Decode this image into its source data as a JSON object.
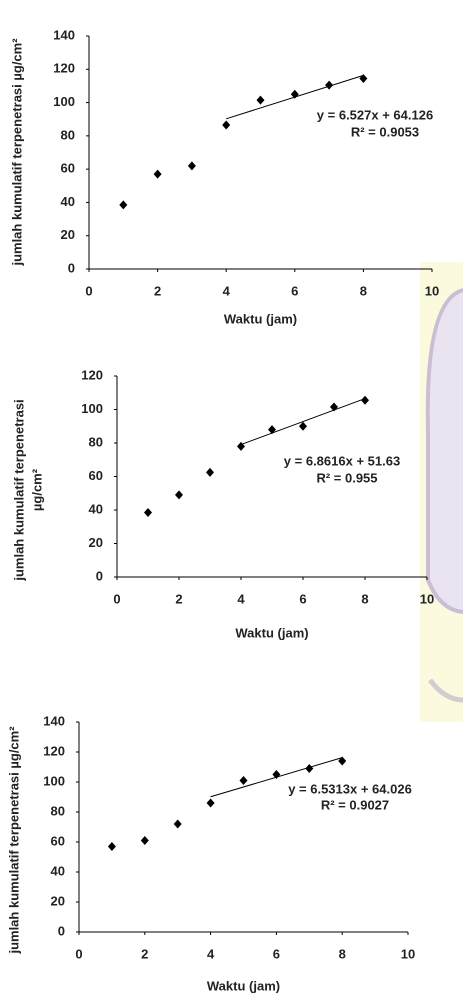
{
  "chart_data": [
    {
      "type": "scatter",
      "x": [
        1,
        2,
        3,
        4,
        5,
        6,
        7,
        8
      ],
      "values": [
        38.5,
        57,
        62,
        86.5,
        101.5,
        105,
        110.5,
        114.5
      ],
      "color": "#000000",
      "xlabel": "Waktu (jam)",
      "ylabel": [
        "jumlah kumulatif terpenetrasi µg/cm²"
      ],
      "xlim": [
        0,
        10
      ],
      "xticks": [
        0,
        2,
        4,
        6,
        8,
        10
      ],
      "ylim": [
        0,
        140
      ],
      "yticks": [
        0,
        20,
        40,
        60,
        80,
        100,
        120,
        140
      ],
      "trendline": {
        "slope": 6.527,
        "intercept": 64.126,
        "from": 4,
        "to": 8
      },
      "annotations": [
        "y = 6.527x + 64.126",
        "R² = 0.9053"
      ]
    },
    {
      "type": "scatter",
      "x": [
        1,
        2,
        3,
        4,
        5,
        6,
        7,
        8
      ],
      "values": [
        38.5,
        49,
        62.5,
        78,
        88,
        90,
        101.5,
        105.5
      ],
      "color": "#000000",
      "xlabel": "Waktu (jam)",
      "ylabel": [
        "jumlah kumulatif terpenetrasi",
        "µg/cm²"
      ],
      "xlim": [
        0,
        10
      ],
      "xticks": [
        0,
        2,
        4,
        6,
        8,
        10
      ],
      "ylim": [
        0,
        120
      ],
      "yticks": [
        0,
        20,
        40,
        60,
        80,
        100,
        120
      ],
      "trendline": {
        "slope": 6.8616,
        "intercept": 51.63,
        "from": 4,
        "to": 8
      },
      "annotations": [
        "y = 6.8616x + 51.63",
        "R² = 0.955"
      ]
    },
    {
      "type": "scatter",
      "x": [
        1,
        2,
        3,
        4,
        5,
        6,
        7,
        8
      ],
      "values": [
        57,
        61,
        72,
        86,
        101,
        105,
        109,
        114
      ],
      "color": "#000000",
      "xlabel": "Waktu (jam)",
      "ylabel": [
        "jumlah kumulatif terpenetrasi µg/cm²"
      ],
      "xlim": [
        0,
        10
      ],
      "xticks": [
        0,
        2,
        4,
        6,
        8,
        10
      ],
      "ylim": [
        0,
        140
      ],
      "yticks": [
        0,
        20,
        40,
        60,
        80,
        100,
        120,
        140
      ],
      "trendline": {
        "slope": 6.5313,
        "intercept": 64.026,
        "from": 4,
        "to": 8
      },
      "annotations": [
        "y = 6.5313x + 64.026",
        "R² = 0.9027"
      ]
    }
  ]
}
